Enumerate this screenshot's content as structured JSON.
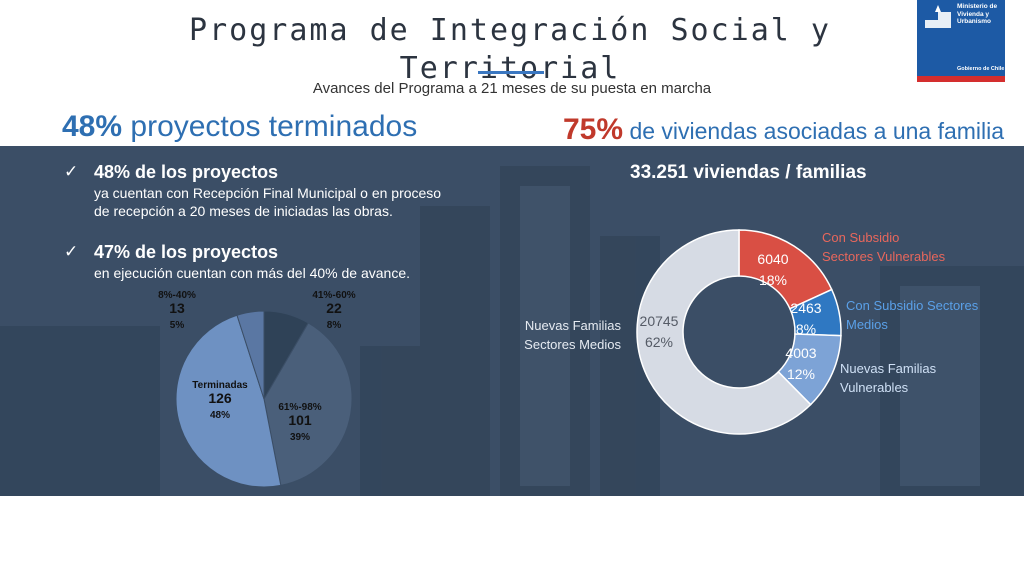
{
  "header": {
    "title": "Programa de Integración Social y Territorial",
    "subtitle": "Avances del Programa a 21 meses de su puesta en marcha"
  },
  "logo": {
    "text": "Ministerio de Vivienda y Urbanismo",
    "footer": "Gobierno de Chile"
  },
  "left": {
    "heading_pct": "48%",
    "heading_text": "proyectos terminados",
    "bullets": [
      {
        "title": "48% de los proyectos",
        "line1": "ya cuentan con Recepción Final Municipal o en proceso",
        "line2": "de recepción a 20 meses de iniciadas las obras."
      },
      {
        "title": "47% de los proyectos",
        "line1": "en ejecución cuentan con más del 40% de avance.",
        "line2": ""
      }
    ]
  },
  "right": {
    "heading_pct": "75%",
    "heading_text": "de viviendas asociadas a una familia",
    "subheading": "33.251 viviendas / familias"
  },
  "colors": {
    "band": "#3b4e66",
    "accent_blue": "#2e6fb2",
    "accent_red": "#c0392b"
  },
  "chart_data": [
    {
      "type": "pie",
      "slices": [
        {
          "name": "41%-60%",
          "value": 22,
          "percent": "8%",
          "color": "#2f4257"
        },
        {
          "name": "61%-98%",
          "value": 101,
          "percent": "39%",
          "color": "#4a5f7a"
        },
        {
          "name": "Terminadas",
          "value": 126,
          "percent": "48%",
          "color": "#6e91c2"
        },
        {
          "name": "8%-40%",
          "value": 13,
          "percent": "5%",
          "color": "#5a77a3"
        }
      ]
    },
    {
      "type": "pie",
      "donut": true,
      "slices": [
        {
          "name": "Con Subsidio Sectores Vulnerables",
          "value": 6040,
          "percent": "18%",
          "color": "#d94f44",
          "label_color": "#e8675c"
        },
        {
          "name": "Con Subsidio Sectores Medios",
          "value": 2463,
          "percent": "8%",
          "color": "#2f78c2",
          "label_color": "#5aa0e8"
        },
        {
          "name": "Nuevas Familias Vulnerables",
          "value": 4003,
          "percent": "12%",
          "color": "#7da3d6",
          "label_color": "#cfe0f5"
        },
        {
          "name": "Nuevas Familias Sectores Medios",
          "value": 20745,
          "percent": "62%",
          "color": "#d6dbe4",
          "label_color": "#e6ebf2"
        }
      ]
    }
  ]
}
